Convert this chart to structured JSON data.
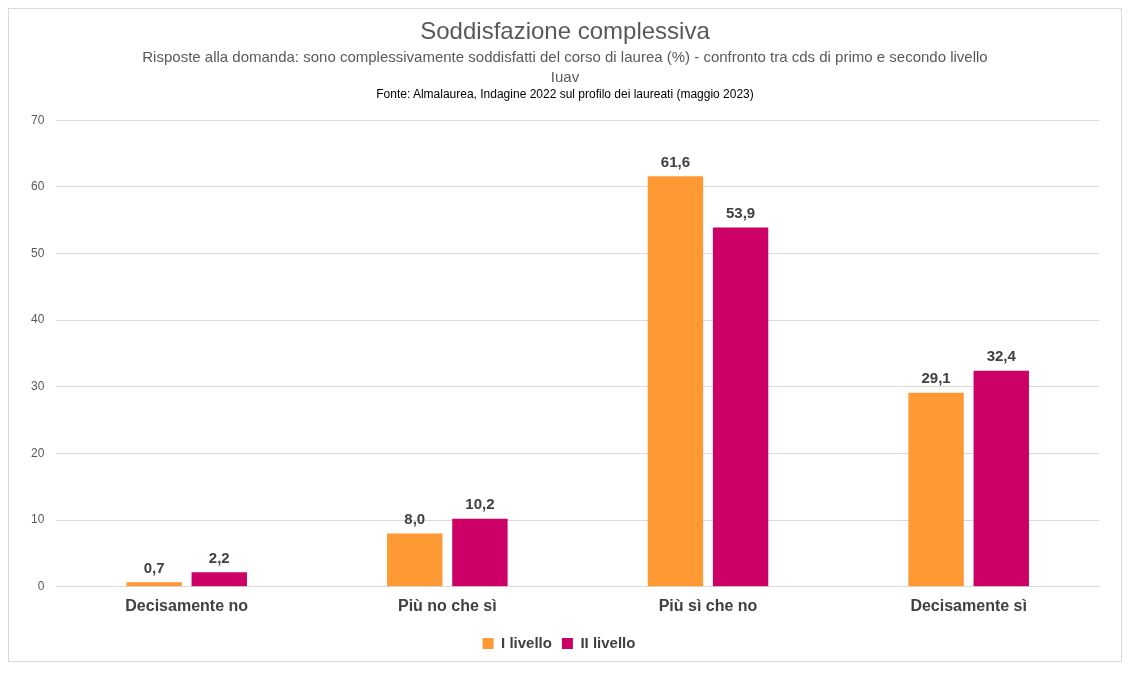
{
  "chart_data": {
    "type": "bar",
    "title": "Soddisfazione complessiva",
    "subtitle": "Risposte alla domanda: sono complessivamente soddisfatti del corso di laurea (%) - confronto tra cds di primo e secondo livello Iuav",
    "annotations": [
      "Fonte: Almalaurea, Indagine 2022 sul profilo dei laureati (maggio 2023)"
    ],
    "categories": [
      "Decisamente no",
      "Più no che sì",
      "Più sì che no",
      "Decisamente sì"
    ],
    "series": [
      {
        "name": "I livello",
        "color": "#ff9933",
        "values": [
          0.7,
          8.0,
          61.6,
          29.1
        ],
        "value_labels": [
          "0,7",
          "8,0",
          "61,6",
          "29,1"
        ]
      },
      {
        "name": "II livello",
        "color": "#cc0066",
        "values": [
          2.2,
          10.2,
          53.9,
          32.4
        ],
        "value_labels": [
          "2,2",
          "10,2",
          "53,9",
          "32,4"
        ]
      }
    ],
    "ylim": [
      0,
      70
    ],
    "yticks": [
      0,
      10,
      20,
      30,
      40,
      50,
      60,
      70
    ],
    "grid": "y",
    "legend": "bottom"
  }
}
